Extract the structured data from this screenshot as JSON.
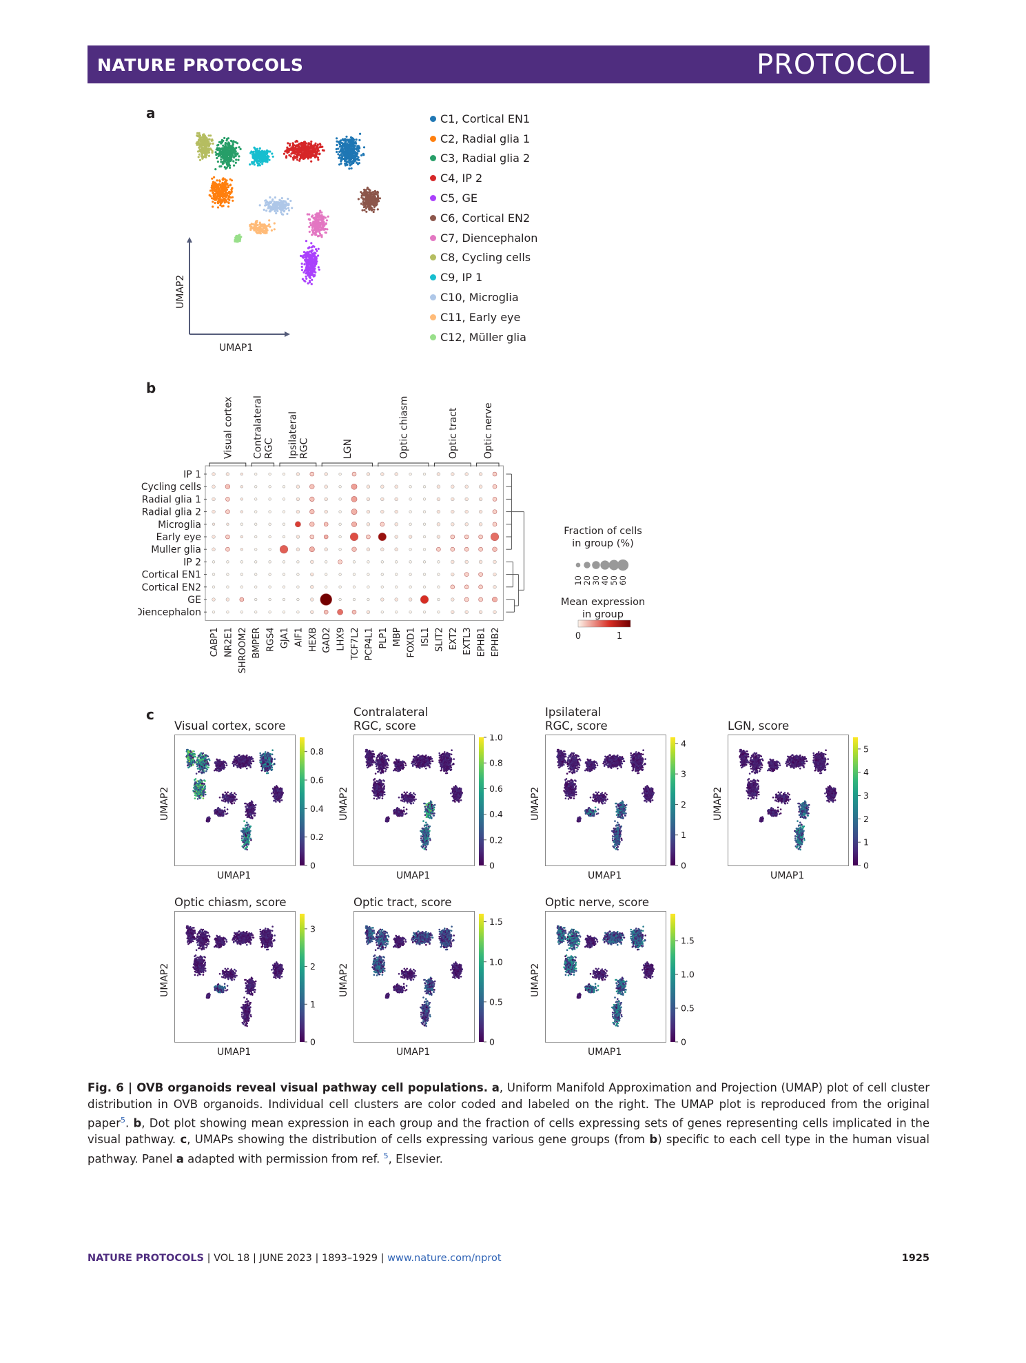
{
  "header": {
    "journal": "NATURE PROTOCOLS",
    "section": "PROTOCOL"
  },
  "panel_a": {
    "letter": "a",
    "xlabel": "UMAP1",
    "ylabel": "UMAP2",
    "clusters": [
      {
        "label": "C1, Cortical EN1",
        "color": "#1f77b4"
      },
      {
        "label": "C2, Radial glia 1",
        "color": "#ff7f0e"
      },
      {
        "label": "C3, Radial glia 2",
        "color": "#279e68"
      },
      {
        "label": "C4, IP 2",
        "color": "#d62728"
      },
      {
        "label": "C5, GE",
        "color": "#aa40fc"
      },
      {
        "label": "C6, Cortical EN2",
        "color": "#8c564b"
      },
      {
        "label": "C7, Diencephalon",
        "color": "#e377c2"
      },
      {
        "label": "C8, Cycling cells",
        "color": "#b5bd61"
      },
      {
        "label": "C9, IP 1",
        "color": "#17becf"
      },
      {
        "label": "C10, Microglia",
        "color": "#aec7e8"
      },
      {
        "label": "C11, Early eye",
        "color": "#ffbb78"
      },
      {
        "label": "C12, Müller glia",
        "color": "#98df8a"
      }
    ]
  },
  "panel_b": {
    "letter": "b",
    "gene_groups": [
      {
        "label": "Visual cortex",
        "start": 0,
        "end": 2
      },
      {
        "label": "Contralateral\nRGC",
        "start": 3,
        "end": 4
      },
      {
        "label": "Ipsilateral\nRGC",
        "start": 5,
        "end": 7
      },
      {
        "label": "LGN",
        "start": 8,
        "end": 11
      },
      {
        "label": "Optic chiasm",
        "start": 12,
        "end": 15
      },
      {
        "label": "Optic tract",
        "start": 16,
        "end": 18
      },
      {
        "label": "Optic nerve",
        "start": 19,
        "end": 20
      }
    ],
    "genes": [
      "CABP1",
      "NR2E1",
      "SHROOM2",
      "BMPER",
      "RGS4",
      "GJA1",
      "AIF1",
      "HEXB",
      "GAD2",
      "LHX9",
      "TCF7L2",
      "PCP4L1",
      "PLP1",
      "MBP",
      "FOXD1",
      "ISL1",
      "SLIT2",
      "EXT2",
      "EXTL3",
      "EPHB1",
      "EPHB2"
    ],
    "groups": [
      "IP 1",
      "Cycling cells",
      "Radial glia 1",
      "Radial glia 2",
      "Microglia",
      "Early eye",
      "Muller glia",
      "IP 2",
      "Cortical EN1",
      "Cortical EN2",
      "GE",
      "Diencephalon"
    ],
    "legend_size_title": "Fraction of cells\nin group (%)",
    "legend_size_ticks": [
      "10",
      "20",
      "30",
      "40",
      "50",
      "60"
    ],
    "legend_color_title": "Mean expression\nin group",
    "legend_color_ticks": [
      "0",
      "1"
    ]
  },
  "chart_data": {
    "type": "heatmap",
    "note_rows": "groups",
    "note_cols": "genes",
    "fraction_percent": [
      [
        5,
        5,
        3,
        3,
        3,
        3,
        5,
        8,
        5,
        3,
        8,
        5,
        5,
        5,
        3,
        3,
        5,
        5,
        5,
        5,
        8
      ],
      [
        5,
        10,
        3,
        3,
        3,
        3,
        5,
        10,
        5,
        3,
        15,
        5,
        5,
        5,
        3,
        3,
        5,
        5,
        5,
        5,
        8
      ],
      [
        5,
        8,
        3,
        3,
        3,
        3,
        5,
        10,
        5,
        3,
        15,
        5,
        5,
        5,
        3,
        3,
        5,
        5,
        5,
        5,
        8
      ],
      [
        5,
        8,
        3,
        3,
        3,
        3,
        5,
        10,
        5,
        3,
        15,
        5,
        5,
        5,
        3,
        3,
        5,
        5,
        5,
        5,
        8
      ],
      [
        3,
        3,
        3,
        3,
        3,
        3,
        15,
        10,
        8,
        3,
        12,
        5,
        8,
        5,
        3,
        3,
        5,
        5,
        5,
        5,
        8
      ],
      [
        5,
        8,
        3,
        3,
        3,
        3,
        5,
        8,
        8,
        3,
        30,
        8,
        30,
        5,
        5,
        3,
        5,
        8,
        8,
        8,
        30
      ],
      [
        5,
        8,
        3,
        3,
        3,
        30,
        5,
        12,
        5,
        3,
        10,
        5,
        5,
        5,
        3,
        3,
        8,
        8,
        8,
        8,
        10
      ],
      [
        3,
        3,
        3,
        3,
        3,
        3,
        3,
        5,
        3,
        8,
        3,
        3,
        3,
        3,
        3,
        3,
        3,
        5,
        5,
        5,
        5
      ],
      [
        3,
        3,
        3,
        3,
        3,
        3,
        3,
        5,
        3,
        3,
        3,
        3,
        3,
        3,
        3,
        3,
        3,
        5,
        8,
        8,
        5
      ],
      [
        3,
        3,
        3,
        3,
        3,
        3,
        3,
        5,
        3,
        3,
        3,
        3,
        3,
        3,
        3,
        3,
        3,
        8,
        8,
        8,
        5
      ],
      [
        5,
        5,
        8,
        3,
        3,
        3,
        3,
        5,
        65,
        3,
        3,
        3,
        5,
        5,
        5,
        30,
        3,
        5,
        8,
        8,
        12
      ],
      [
        3,
        3,
        3,
        3,
        3,
        3,
        3,
        5,
        8,
        15,
        8,
        5,
        3,
        3,
        3,
        3,
        3,
        5,
        5,
        5,
        5
      ]
    ],
    "mean_expression": [
      [
        0.05,
        0.05,
        0.05,
        0,
        0,
        0,
        0.05,
        0.1,
        0.05,
        0,
        0.1,
        0.05,
        0.05,
        0.05,
        0,
        0,
        0.05,
        0.05,
        0.05,
        0.05,
        0.1
      ],
      [
        0.05,
        0.15,
        0.05,
        0,
        0,
        0,
        0.05,
        0.15,
        0.05,
        0,
        0.25,
        0.05,
        0.05,
        0.05,
        0,
        0,
        0.05,
        0.05,
        0.05,
        0.05,
        0.1
      ],
      [
        0.05,
        0.1,
        0.05,
        0,
        0,
        0,
        0.05,
        0.15,
        0.05,
        0,
        0.25,
        0.05,
        0.05,
        0.05,
        0,
        0,
        0.05,
        0.05,
        0.05,
        0.05,
        0.1
      ],
      [
        0.05,
        0.1,
        0.05,
        0,
        0,
        0,
        0.05,
        0.15,
        0.05,
        0,
        0.2,
        0.05,
        0.05,
        0.05,
        0,
        0,
        0.05,
        0.05,
        0.05,
        0.05,
        0.1
      ],
      [
        0.05,
        0.05,
        0,
        0,
        0,
        0,
        0.55,
        0.15,
        0.15,
        0,
        0.2,
        0.05,
        0.1,
        0.05,
        0,
        0,
        0.05,
        0.05,
        0.05,
        0.05,
        0.1
      ],
      [
        0.05,
        0.1,
        0.05,
        0,
        0,
        0,
        0.05,
        0.1,
        0.2,
        0,
        0.5,
        0.1,
        0.85,
        0.05,
        0.05,
        0,
        0.05,
        0.1,
        0.1,
        0.1,
        0.4
      ],
      [
        0.05,
        0.1,
        0.05,
        0,
        0,
        0.45,
        0.05,
        0.2,
        0.05,
        0,
        0.15,
        0.05,
        0.05,
        0.05,
        0,
        0,
        0.1,
        0.1,
        0.1,
        0.1,
        0.15
      ],
      [
        0,
        0,
        0,
        0,
        0,
        0,
        0,
        0.05,
        0,
        0.1,
        0,
        0,
        0,
        0,
        0,
        0,
        0,
        0.05,
        0.05,
        0.05,
        0.05
      ],
      [
        0,
        0,
        0,
        0,
        0,
        0,
        0,
        0.05,
        0,
        0,
        0,
        0,
        0,
        0,
        0,
        0,
        0,
        0.05,
        0.1,
        0.1,
        0.05
      ],
      [
        0,
        0,
        0,
        0,
        0,
        0,
        0,
        0.05,
        0,
        0,
        0,
        0,
        0,
        0,
        0,
        0,
        0,
        0.1,
        0.1,
        0.1,
        0.05
      ],
      [
        0.05,
        0.05,
        0.15,
        0,
        0,
        0,
        0,
        0.05,
        1.0,
        0,
        0,
        0,
        0.05,
        0.05,
        0.05,
        0.6,
        0,
        0.05,
        0.1,
        0.1,
        0.2
      ],
      [
        0,
        0,
        0,
        0,
        0,
        0,
        0,
        0.05,
        0.15,
        0.4,
        0.15,
        0.05,
        0,
        0,
        0,
        0,
        0,
        0.05,
        0.05,
        0.05,
        0.05
      ]
    ],
    "color_range": [
      0,
      1
    ]
  },
  "panel_c": {
    "letter": "c",
    "xlabel": "UMAP1",
    "ylabel": "UMAP2",
    "plots": [
      {
        "title": "Visual cortex, score",
        "ticks": [
          "0.8",
          "0.6",
          "0.4",
          "0.2",
          "0"
        ],
        "max": 0.9
      },
      {
        "title": "Contralateral\nRGC, score",
        "ticks": [
          "1.0",
          "0.8",
          "0.6",
          "0.4",
          "0.2",
          "0"
        ],
        "max": 1.0
      },
      {
        "title": "Ipsilateral\nRGC, score",
        "ticks": [
          "4",
          "3",
          "2",
          "1",
          "0"
        ],
        "max": 4.2
      },
      {
        "title": "LGN, score",
        "ticks": [
          "5",
          "4",
          "3",
          "2",
          "1",
          "0"
        ],
        "max": 5.5
      },
      {
        "title": "Optic chiasm, score",
        "ticks": [
          "3",
          "2",
          "1",
          "0"
        ],
        "max": 3.4
      },
      {
        "title": "Optic tract, score",
        "ticks": [
          "1.5",
          "1.0",
          "0.5",
          "0"
        ],
        "max": 1.6
      },
      {
        "title": "Optic nerve, score",
        "ticks": [
          "1.5",
          "1.0",
          "0.5",
          "0"
        ],
        "max": 1.9
      }
    ]
  },
  "caption": {
    "fig_label": "Fig. 6 | OVB organoids reveal visual pathway cell populations.",
    "a_label": "a",
    "a_text": ", Uniform Manifold Approximation and Projection (UMAP) plot of cell cluster distribution in OVB organoids. Individual cell clusters are color coded and labeled on the right. The UMAP plot is reproduced from the original paper",
    "ref1": "5",
    "b_label": "b",
    "b_text": ", Dot plot showing mean expression in each group and the fraction of cells expressing sets of genes representing cells implicated in the visual pathway. ",
    "c_label": "c",
    "c_text1": ", UMAPs showing the distribution of cells expressing various gene groups (from ",
    "c_b": "b",
    "c_text2": ") specific to each cell type in the human visual pathway. Panel ",
    "c_a": "a",
    "c_text3": " adapted with permission from ref. ",
    "ref2": "5",
    "c_text4": ", Elsevier."
  },
  "footer": {
    "journal": "NATURE PROTOCOLS",
    "sep1": " | ",
    "vol": "VOL 18",
    "sep2": " | ",
    "date": "JUNE 2023",
    "sep3": " | ",
    "pages": "1893–1929",
    "sep4": " | ",
    "url": "www.nature.com/nprot",
    "page": "1925"
  }
}
